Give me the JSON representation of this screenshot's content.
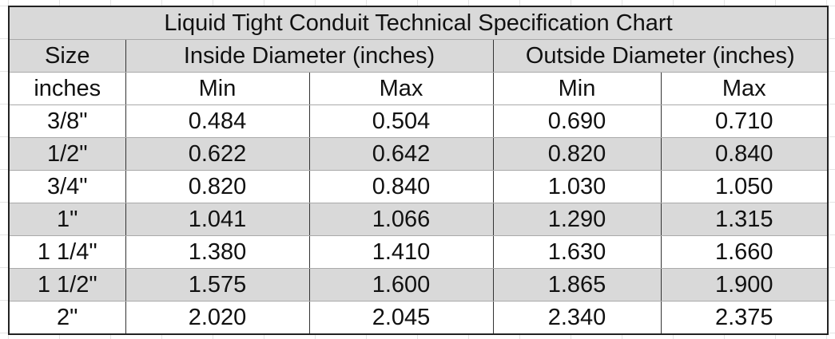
{
  "table": {
    "title": "Liquid Tight Conduit Technical Specification Chart",
    "header_row": [
      "Size",
      "Inside Diameter (inches)",
      "Outside Diameter (inches)"
    ],
    "subheader_row": [
      "inches",
      "Min",
      "Max",
      "Min",
      "Max"
    ],
    "rows": [
      [
        "3/8\"",
        "0.484",
        "0.504",
        "0.690",
        "0.710"
      ],
      [
        "1/2\"",
        "0.622",
        "0.642",
        "0.820",
        "0.840"
      ],
      [
        "3/4\"",
        "0.820",
        "0.840",
        "1.030",
        "1.050"
      ],
      [
        "1\"",
        "1.041",
        "1.066",
        "1.290",
        "1.315"
      ],
      [
        "1 1/4\"",
        "1.380",
        "1.410",
        "1.630",
        "1.660"
      ],
      [
        "1 1/2\"",
        "1.575",
        "1.600",
        "1.865",
        "1.900"
      ],
      [
        "2\"",
        "2.020",
        "2.045",
        "2.340",
        "2.375"
      ]
    ]
  }
}
